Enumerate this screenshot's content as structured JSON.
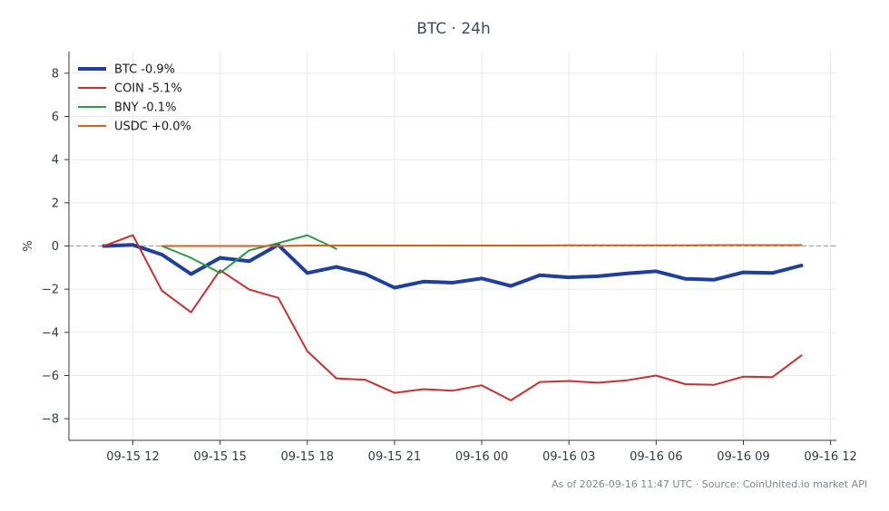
{
  "title": "BTC · 24h",
  "footer": "As of 2026-09-16 11:47 UTC · Source: CoinUnited.io market API",
  "colors": {
    "btc": "#1f3f9a",
    "coin": "#c8312f",
    "bny": "#2b9a4a",
    "usdc": "#d4621f",
    "axis": "#2f3a4a",
    "grid": "#e9e9ef",
    "zero": "#9aa0b8",
    "title": "#3c4a5e",
    "footer": "#7c8796"
  },
  "chart_data": {
    "type": "line",
    "title": "BTC · 24h",
    "xlabel": "",
    "ylabel": "%",
    "ylim": [
      -9,
      9
    ],
    "xlim_hours": [
      9.8,
      36.2
    ],
    "grid": true,
    "legend_position": "top-left",
    "zero_line": true,
    "x_ticks": [
      {
        "hour": 12,
        "label": "09-15 12"
      },
      {
        "hour": 15,
        "label": "09-15 15"
      },
      {
        "hour": 18,
        "label": "09-15 18"
      },
      {
        "hour": 21,
        "label": "09-15 21"
      },
      {
        "hour": 24,
        "label": "09-16 00"
      },
      {
        "hour": 27,
        "label": "09-16 03"
      },
      {
        "hour": 30,
        "label": "09-16 06"
      },
      {
        "hour": 33,
        "label": "09-16 09"
      },
      {
        "hour": 36,
        "label": "09-16 12"
      }
    ],
    "y_ticks": [
      {
        "value": 8,
        "label": "8"
      },
      {
        "value": 6,
        "label": "6"
      },
      {
        "value": 4,
        "label": "4"
      },
      {
        "value": 2,
        "label": "2"
      },
      {
        "value": 0,
        "label": "0"
      },
      {
        "value": -2,
        "label": "−2"
      },
      {
        "value": -4,
        "label": "−4"
      },
      {
        "value": -6,
        "label": "−6"
      },
      {
        "value": -8,
        "label": "−8"
      }
    ],
    "series": [
      {
        "name": "BTC -0.9%",
        "color": "#1f3f9a",
        "width": 4,
        "x": [
          11,
          12,
          13,
          14,
          15,
          16,
          17,
          18,
          19,
          20,
          21,
          22,
          23,
          24,
          25,
          26,
          27,
          28,
          29,
          30,
          31,
          32,
          33,
          34,
          35
        ],
        "y": [
          0.0,
          0.05,
          -0.4,
          -1.3,
          -0.55,
          -0.7,
          0.05,
          -1.25,
          -0.97,
          -1.3,
          -1.93,
          -1.65,
          -1.7,
          -1.5,
          -1.85,
          -1.35,
          -1.45,
          -1.4,
          -1.27,
          -1.17,
          -1.52,
          -1.56,
          -1.22,
          -1.25,
          -0.9
        ]
      },
      {
        "name": "COIN -5.1%",
        "color": "#c8312f",
        "width": 2,
        "x": [
          11,
          12,
          13,
          14,
          15,
          16,
          17,
          18,
          19,
          20,
          21,
          22,
          23,
          24,
          25,
          26,
          27,
          28,
          29,
          30,
          31,
          32,
          33,
          34,
          35
        ],
        "y": [
          0.0,
          0.5,
          -2.07,
          -3.07,
          -1.12,
          -2.02,
          -2.4,
          -4.87,
          -6.13,
          -6.2,
          -6.8,
          -6.63,
          -6.7,
          -6.45,
          -7.15,
          -6.3,
          -6.25,
          -6.33,
          -6.22,
          -6.0,
          -6.4,
          -6.43,
          -6.05,
          -6.07,
          -5.07
        ]
      },
      {
        "name": "BNY -0.1%",
        "color": "#2b9a4a",
        "width": 2,
        "x": [
          13,
          14,
          15,
          16,
          17,
          18,
          19
        ],
        "y": [
          0.0,
          -0.55,
          -1.25,
          -0.2,
          0.13,
          0.5,
          -0.13
        ]
      },
      {
        "name": "USDC +0.0%",
        "color": "#d4621f",
        "width": 2,
        "x": [
          13,
          14,
          15,
          16,
          17,
          18,
          19,
          20,
          21,
          22,
          23,
          24,
          25,
          26,
          27,
          28,
          29,
          30,
          31,
          32,
          33,
          34,
          35
        ],
        "y": [
          0.0,
          0.0,
          0.0,
          0.0,
          0.0,
          0.02,
          0.02,
          0.02,
          0.02,
          0.02,
          0.02,
          0.02,
          0.02,
          0.02,
          0.03,
          0.03,
          0.03,
          0.03,
          0.03,
          0.04,
          0.04,
          0.04,
          0.04
        ]
      }
    ]
  }
}
